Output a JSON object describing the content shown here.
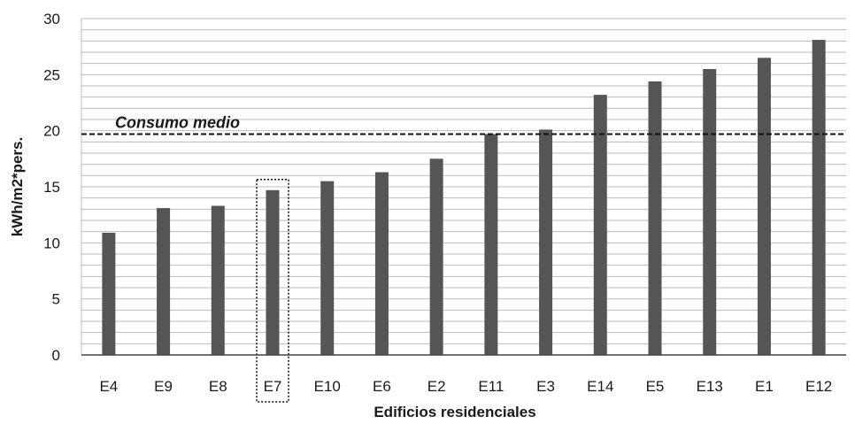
{
  "chart_data": {
    "type": "bar",
    "categories": [
      "E4",
      "E9",
      "E8",
      "E7",
      "E10",
      "E6",
      "E2",
      "E11",
      "E3",
      "E14",
      "E5",
      "E13",
      "E1",
      "E12"
    ],
    "values": [
      10.9,
      13.1,
      13.3,
      14.7,
      15.5,
      16.3,
      17.5,
      19.7,
      20.1,
      23.2,
      24.4,
      25.5,
      26.5,
      28.1
    ],
    "xlabel": "Edificios residenciales",
    "ylabel": "kWh/m2*pers.",
    "ylim": [
      0,
      30
    ],
    "yticks": [
      0,
      5,
      10,
      15,
      20,
      25,
      30
    ],
    "minor_grid_step": 1,
    "grid": true,
    "bar_color": "#555555",
    "reference_line": {
      "label": "Consumo medio",
      "value": 19.7,
      "style": "dashed"
    },
    "highlight": {
      "category": "E7",
      "style": "dotted-box"
    }
  }
}
